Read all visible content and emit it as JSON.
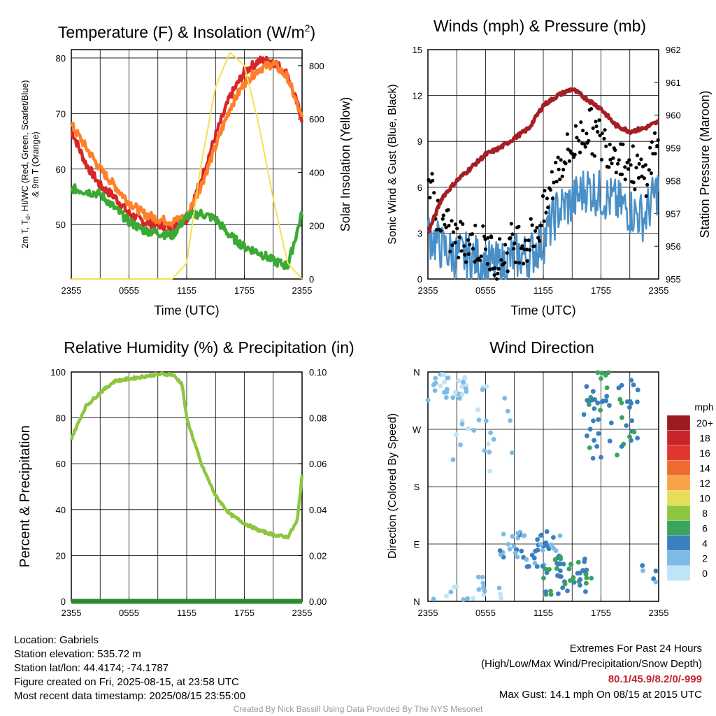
{
  "chart_data": [
    {
      "type": "line",
      "title": "Temperature (F) & Insolation (W/m²)",
      "title_main": "Temperature (F) & Insolation (W/m",
      "title_sup": "2",
      "title_end": ")",
      "xlabel": "Time (UTC)",
      "ylabel": "2m T, T",
      "ylabel_sub": "d",
      "ylabel_rest": ", HI/WC (Red, Green, Scarlet/Blue)",
      "ylabel2": "& 9m T (Orange)",
      "y2label": "Solar Insolation (Yellow)",
      "x_ticks": [
        "2355",
        "0555",
        "1155",
        "1755",
        "2355"
      ],
      "ylim": [
        40.2,
        81.5
      ],
      "y_ticks": [
        50,
        60,
        70,
        80
      ],
      "y2lim": [
        0,
        860
      ],
      "y2_ticks": [
        0,
        200,
        400,
        600,
        800
      ],
      "x": [
        0,
        1.5,
        3,
        4.5,
        6,
        7.5,
        9,
        10.5,
        12,
        13.5,
        15,
        16.5,
        18,
        19.5,
        21,
        22.5,
        24
      ],
      "series": [
        {
          "color": "#d62728",
          "axis": "left",
          "values": [
            67,
            61,
            57,
            55,
            52,
            50.5,
            50,
            49.5,
            51,
            58,
            66,
            73,
            77.5,
            79.5,
            79.5,
            77,
            69
          ]
        },
        {
          "color": "#ff7f2a",
          "axis": "left",
          "values": [
            68,
            64,
            60,
            57,
            54,
            52,
            51,
            50.5,
            51.5,
            57,
            64,
            71,
            75.5,
            78,
            79,
            76.5,
            69
          ]
        },
        {
          "color": "#3aaa35",
          "axis": "left",
          "values": [
            56.5,
            56,
            55.5,
            53,
            50.5,
            49,
            48.5,
            48,
            51.5,
            52,
            51,
            48,
            46,
            45,
            43.5,
            42.5,
            52
          ]
        },
        {
          "color": "#f5e050",
          "axis": "right",
          "values": [
            0,
            0,
            0,
            0,
            0,
            0,
            0,
            0,
            60,
            430,
            720,
            850,
            800,
            580,
            300,
            60,
            0
          ]
        }
      ]
    },
    {
      "type": "scatter",
      "title": "Winds (mph) & Pressure (mb)",
      "xlabel": "Time (UTC)",
      "ylabel": "Sonic Wind & Gust (Blue, Black)",
      "y2label": "Station Pressure (Maroon)",
      "x_ticks": [
        "2355",
        "0555",
        "1155",
        "1755",
        "2355"
      ],
      "ylim": [
        0,
        15
      ],
      "y_ticks": [
        0,
        3,
        6,
        9,
        12,
        15
      ],
      "y2lim": [
        955,
        962
      ],
      "y2_ticks": [
        955,
        956,
        957,
        958,
        959,
        960,
        961,
        962
      ],
      "x": [
        0,
        1.5,
        3,
        4.5,
        6,
        7.5,
        9,
        10.5,
        12,
        13.5,
        15,
        16.5,
        18,
        19.5,
        21,
        22.5,
        24
      ],
      "series": [
        {
          "color": "#4a90c8",
          "values": [
            3,
            2,
            1.5,
            1.5,
            1,
            0.8,
            1.5,
            1.5,
            2.5,
            4.5,
            5,
            6,
            5.5,
            5,
            4.5,
            4,
            6
          ]
        },
        {
          "color": "#000000",
          "values": [
            6.5,
            3.5,
            2.5,
            2.5,
            2,
            1.3,
            2.5,
            2.5,
            4,
            7.5,
            8.5,
            10,
            9,
            8.5,
            7.5,
            6.5,
            9.5
          ]
        },
        {
          "color": "#a31f24",
          "axis": "right",
          "values": [
            956.4,
            957.5,
            958,
            958.4,
            958.8,
            959,
            959.3,
            959.6,
            960.3,
            960.6,
            960.8,
            960.5,
            960.2,
            959.7,
            959.5,
            959.6,
            959.8
          ]
        }
      ]
    },
    {
      "type": "line",
      "title": "Relative Humidity (%) & Precipitation (in)",
      "xlabel": "",
      "ylabel": "Percent & Precipitation",
      "x_ticks": [
        "2355",
        "0555",
        "1155",
        "1755",
        "2355"
      ],
      "ylim": [
        0,
        100
      ],
      "y_ticks": [
        0,
        20,
        40,
        60,
        80,
        100
      ],
      "y2lim": [
        0,
        0.1
      ],
      "y2_ticks": [
        "0.00",
        "0.02",
        "0.04",
        "0.06",
        "0.08",
        "0.10"
      ],
      "x": [
        0,
        1.5,
        3,
        4.5,
        6,
        7.5,
        9,
        10.5,
        11.5,
        12,
        13.5,
        15,
        16.5,
        18,
        19.5,
        21,
        22.5,
        23.5,
        24
      ],
      "series": [
        {
          "color": "#8dc63f",
          "values": [
            71,
            85,
            91,
            96,
            97,
            98,
            99,
            99,
            95,
            80,
            60,
            46,
            38,
            34,
            31,
            29,
            28,
            35,
            55
          ]
        },
        {
          "color": "#2d8a2d",
          "values": [
            0,
            0,
            0,
            0,
            0,
            0,
            0,
            0,
            0,
            0,
            0,
            0,
            0,
            0,
            0,
            0,
            0,
            0,
            0
          ]
        }
      ]
    },
    {
      "type": "scatter",
      "title": "Wind Direction",
      "xlabel": "",
      "ylabel": "Direction (Colored By Speed)",
      "x_ticks": [
        "2355",
        "0555",
        "1155",
        "1755",
        "2355"
      ],
      "y_ticks": [
        "N",
        "E",
        "S",
        "W",
        "N"
      ],
      "ylim": [
        0,
        360
      ],
      "colorbar": {
        "title": "mph",
        "labels": [
          "20+",
          "18",
          "16",
          "14",
          "12",
          "10",
          "8",
          "6",
          "4",
          "2",
          "0"
        ],
        "colors": [
          "#9b1b1f",
          "#c8242a",
          "#e0362c",
          "#ef6a2e",
          "#f8a24a",
          "#e6de58",
          "#8dc63f",
          "#3aa35c",
          "#3a7fbe",
          "#7dbbe6",
          "#bfe4f7"
        ]
      },
      "clusters": [
        {
          "x0": 0,
          "x1": 4,
          "d0": 315,
          "d1": 360,
          "speed": 1,
          "n": 30
        },
        {
          "x0": 2,
          "x1": 9,
          "d0": 200,
          "d1": 340,
          "speed": 1,
          "n": 24
        },
        {
          "x0": 0,
          "x1": 8,
          "d0": 0,
          "d1": 40,
          "speed": 1,
          "n": 18
        },
        {
          "x0": 7,
          "x1": 10,
          "d0": 60,
          "d1": 110,
          "speed": 2,
          "n": 14
        },
        {
          "x0": 9,
          "x1": 14,
          "d0": 50,
          "d1": 110,
          "speed": 3,
          "n": 40
        },
        {
          "x0": 12,
          "x1": 17,
          "d0": 10,
          "d1": 70,
          "speed": 5,
          "n": 45
        },
        {
          "x0": 16,
          "x1": 22,
          "d0": 220,
          "d1": 350,
          "speed": 4,
          "n": 50
        },
        {
          "x0": 17,
          "x1": 19,
          "d0": 310,
          "d1": 360,
          "speed": 5,
          "n": 8
        },
        {
          "x0": 22,
          "x1": 24,
          "d0": 30,
          "d1": 60,
          "speed": 3,
          "n": 5
        }
      ]
    }
  ],
  "footer": {
    "location": "Location: Gabriels",
    "elevation": "Station elevation: 535.72 m",
    "latlon": "Station lat/lon: 44.4174; -74.1787",
    "created": "Figure created on Fri, 2025-08-15, at 23:58 UTC",
    "recent": "Most recent data timestamp: 2025/08/15 23:55:00",
    "extremes_title": "Extremes For Past 24 Hours",
    "extremes_legend": "(High/Low/Max Wind/Precipitation/Snow Depth)",
    "extremes_values": "80.1/45.9/8.2/0/-999",
    "max_gust": "Max Gust: 14.1 mph On 08/15 at 2015 UTC",
    "credit": "Created By Nick Bassill Using Data Provided By The NYS Mesonet"
  }
}
